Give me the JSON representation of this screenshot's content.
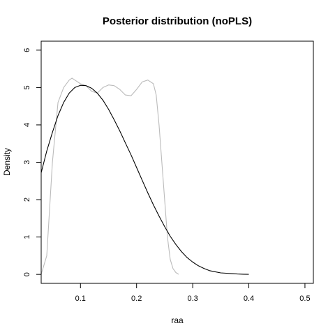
{
  "chart_data": {
    "type": "line",
    "title": "Posterior distribution (noPLS)",
    "xlabel": "raa",
    "ylabel": "Density",
    "xlim": [
      0.03,
      0.515
    ],
    "ylim": [
      -0.24,
      6.24
    ],
    "x_ticks": [
      0.1,
      0.2,
      0.3,
      0.4,
      0.5
    ],
    "x_tick_labels": [
      "0.1",
      "0.2",
      "0.3",
      "0.4",
      "0.5"
    ],
    "y_ticks": [
      0,
      1,
      2,
      3,
      4,
      5,
      6
    ],
    "y_tick_labels": [
      "0",
      "1",
      "2",
      "3",
      "4",
      "5",
      "6"
    ],
    "grid": false,
    "legend": "none",
    "series": [
      {
        "color": "#bbbbbb",
        "x": [
          0.03,
          0.04,
          0.05,
          0.06,
          0.07,
          0.08,
          0.085,
          0.09,
          0.1,
          0.11,
          0.12,
          0.13,
          0.14,
          0.15,
          0.16,
          0.17,
          0.18,
          0.19,
          0.2,
          0.21,
          0.22,
          0.23,
          0.235,
          0.24,
          0.245,
          0.25,
          0.255,
          0.26,
          0.265,
          0.27,
          0.275
        ],
        "y": [
          0.0,
          0.5,
          3.0,
          4.6,
          5.0,
          5.2,
          5.25,
          5.2,
          5.1,
          5.05,
          4.9,
          4.85,
          5.0,
          5.07,
          5.05,
          4.95,
          4.8,
          4.78,
          4.95,
          5.15,
          5.2,
          5.1,
          4.8,
          4.0,
          3.0,
          2.0,
          1.0,
          0.4,
          0.15,
          0.05,
          0.0
        ]
      },
      {
        "color": "#000000",
        "x": [
          0.03,
          0.04,
          0.05,
          0.06,
          0.07,
          0.08,
          0.09,
          0.1,
          0.11,
          0.12,
          0.13,
          0.14,
          0.15,
          0.16,
          0.17,
          0.18,
          0.19,
          0.2,
          0.21,
          0.22,
          0.23,
          0.24,
          0.25,
          0.26,
          0.27,
          0.28,
          0.29,
          0.3,
          0.31,
          0.32,
          0.33,
          0.34,
          0.35,
          0.36,
          0.37,
          0.38,
          0.39,
          0.4
        ],
        "y": [
          2.72,
          3.3,
          3.8,
          4.25,
          4.6,
          4.85,
          5.0,
          5.06,
          5.05,
          4.98,
          4.85,
          4.66,
          4.42,
          4.14,
          3.84,
          3.52,
          3.2,
          2.86,
          2.52,
          2.18,
          1.86,
          1.56,
          1.28,
          1.02,
          0.8,
          0.61,
          0.45,
          0.33,
          0.23,
          0.16,
          0.1,
          0.07,
          0.04,
          0.03,
          0.02,
          0.01,
          0.005,
          0.0
        ]
      }
    ]
  }
}
